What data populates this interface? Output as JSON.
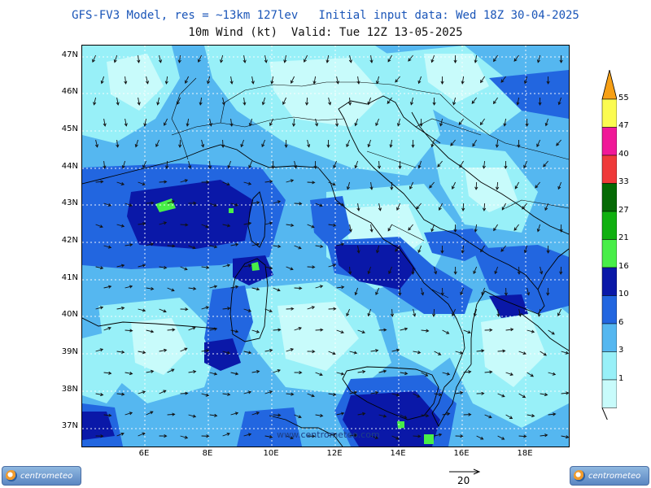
{
  "header": {
    "title_line1": "GFS-FV3 Model, res = ~13km 127lev   Initial input data: Wed 18Z 30-04-2025",
    "title_line2": "10m Wind (kt)  Valid: Tue 12Z 13-05-2025"
  },
  "map": {
    "lat_labels": [
      "47N",
      "46N",
      "45N",
      "44N",
      "43N",
      "42N",
      "41N",
      "40N",
      "39N",
      "38N",
      "37N"
    ],
    "lon_labels": [
      "6E",
      "8E",
      "10E",
      "12E",
      "14E",
      "16E",
      "18E"
    ],
    "watermark": "www.centrometeo.com"
  },
  "legend": {
    "levels": [
      "1",
      "3",
      "6",
      "10",
      "16",
      "21",
      "27",
      "33",
      "40",
      "47",
      "55"
    ],
    "colors": [
      "#c8fbfb",
      "#98f0f8",
      "#55b7f0",
      "#2266e0",
      "#0a18a8",
      "#48ee48",
      "#10b010",
      "#056a05",
      "#ef3a3a",
      "#f01898",
      "#fbfb50",
      "#f7a015"
    ]
  },
  "logos": {
    "left_text": "centrometeo",
    "right_text": "centrometeo"
  },
  "reference_vector": {
    "label": "20"
  }
}
